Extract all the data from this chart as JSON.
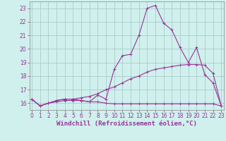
{
  "xlabel": "Windchill (Refroidissement éolien,°C)",
  "background_color": "#cff0ec",
  "grid_color": "#aacccc",
  "line_color": "#993399",
  "hours": [
    0,
    1,
    2,
    3,
    4,
    5,
    6,
    7,
    8,
    9,
    10,
    11,
    12,
    13,
    14,
    15,
    16,
    17,
    18,
    19,
    20,
    21,
    22,
    23
  ],
  "line1": [
    16.3,
    15.8,
    16.0,
    16.1,
    16.2,
    16.2,
    16.2,
    16.1,
    16.1,
    16.0,
    15.95,
    15.95,
    15.95,
    15.95,
    15.95,
    15.95,
    15.95,
    15.95,
    15.95,
    15.95,
    15.95,
    15.95,
    15.95,
    15.8
  ],
  "line2": [
    16.3,
    15.8,
    16.0,
    16.2,
    16.3,
    16.3,
    16.4,
    16.5,
    16.7,
    17.0,
    17.2,
    17.5,
    17.8,
    18.0,
    18.3,
    18.5,
    18.6,
    18.7,
    18.8,
    18.85,
    18.85,
    18.8,
    18.2,
    15.8
  ],
  "line3": [
    16.3,
    15.8,
    16.0,
    16.2,
    16.3,
    16.3,
    16.2,
    16.1,
    16.6,
    16.3,
    18.5,
    19.5,
    19.6,
    21.0,
    23.0,
    23.2,
    21.9,
    21.4,
    20.1,
    19.0,
    20.1,
    18.1,
    17.5,
    15.8
  ],
  "ylim_min": 15.5,
  "ylim_max": 23.5,
  "yticks": [
    16,
    17,
    18,
    19,
    20,
    21,
    22,
    23
  ],
  "xticks": [
    0,
    1,
    2,
    3,
    4,
    5,
    6,
    7,
    8,
    9,
    10,
    11,
    12,
    13,
    14,
    15,
    16,
    17,
    18,
    19,
    20,
    21,
    22,
    23
  ],
  "fontsize_tick": 5.5,
  "fontsize_xlabel": 6.5
}
